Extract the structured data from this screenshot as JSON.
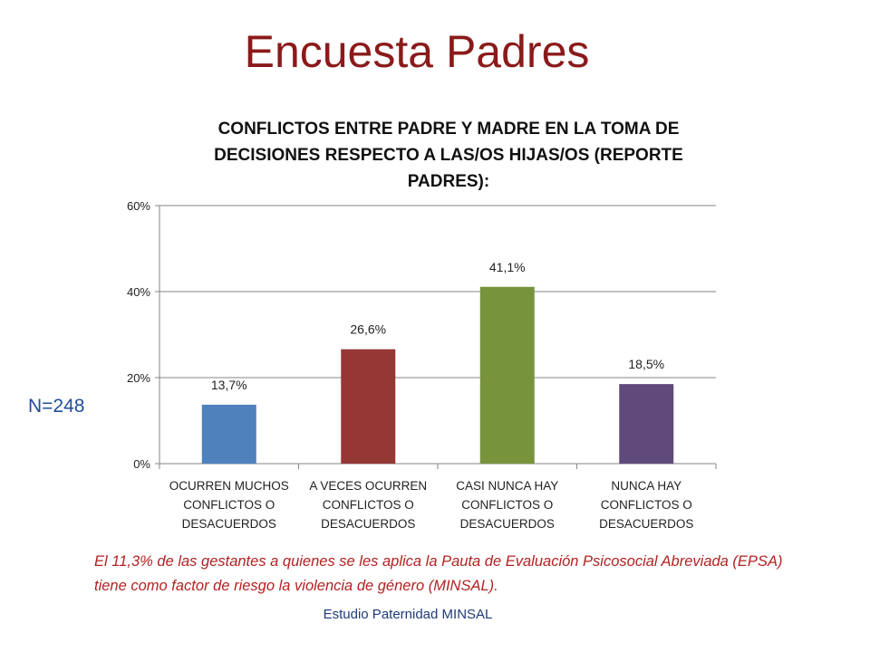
{
  "slide": {
    "title": "Encuesta Padres",
    "n_label": "N=248",
    "footnote": "El 11,3% de las gestantes a quienes se les aplica la Pauta de Evaluación Psicosocial Abreviada (EPSA) tiene como factor de riesgo la violencia de género (MINSAL).",
    "source": "Estudio Paternidad MINSAL"
  },
  "chart_data": {
    "type": "bar",
    "title": "CONFLICTOS ENTRE PADRE Y MADRE EN LA TOMA DE DECISIONES RESPECTO A LAS/OS HIJAS/OS (REPORTE PADRES):",
    "xlabel": "",
    "ylabel": "",
    "ylim": [
      0,
      60
    ],
    "yticks": [
      "0%",
      "20%",
      "40%",
      "60%"
    ],
    "ytick_values": [
      0,
      20,
      40,
      60
    ],
    "grid": true,
    "legend": "none",
    "categories": [
      [
        "OCURREN MUCHOS",
        "CONFLICTOS O",
        "DESACUERDOS"
      ],
      [
        "A VECES OCURREN",
        "CONFLICTOS O",
        "DESACUERDOS"
      ],
      [
        "CASI NUNCA HAY",
        "CONFLICTOS O",
        "DESACUERDOS"
      ],
      [
        "NUNCA HAY",
        "CONFLICTOS O",
        "DESACUERDOS"
      ]
    ],
    "values": [
      13.7,
      26.6,
      41.1,
      18.5
    ],
    "data_labels": [
      "13,7%",
      "26,6%",
      "41,1%",
      "18,5%"
    ],
    "colors": [
      "#4f81bd",
      "#953735",
      "#77933c",
      "#604a7b"
    ]
  }
}
